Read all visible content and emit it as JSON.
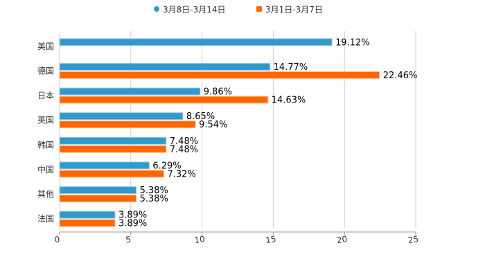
{
  "chart_data": {
    "type": "bar",
    "orientation": "horizontal",
    "categories": [
      "美国",
      "德国",
      "日本",
      "英国",
      "韩国",
      "中国",
      "其他",
      "法国"
    ],
    "series": [
      {
        "name": "3月8日-3月14日",
        "color": "#3399cc",
        "values": [
          19.12,
          14.77,
          9.86,
          8.65,
          7.48,
          6.29,
          5.38,
          3.89
        ],
        "labels": [
          "19.12%",
          "14.77%",
          "9.86%",
          "8.65%",
          "7.48%",
          "6.29%",
          "5.38%",
          "3.89%"
        ]
      },
      {
        "name": "3月1日-3月7日",
        "color": "#ff6600",
        "values": [
          null,
          22.46,
          14.63,
          9.54,
          7.48,
          7.32,
          5.38,
          3.89
        ],
        "labels": [
          null,
          "22.46%",
          "14.63%",
          "9.54%",
          "7.48%",
          "7.32%",
          "5.38%",
          "3.89%"
        ]
      }
    ],
    "xlim": [
      0,
      25
    ],
    "xticks": [
      "0",
      "5",
      "10",
      "15",
      "20",
      "25"
    ],
    "grid": true,
    "legend": "top-center",
    "title": "",
    "xlabel": "",
    "ylabel": ""
  }
}
